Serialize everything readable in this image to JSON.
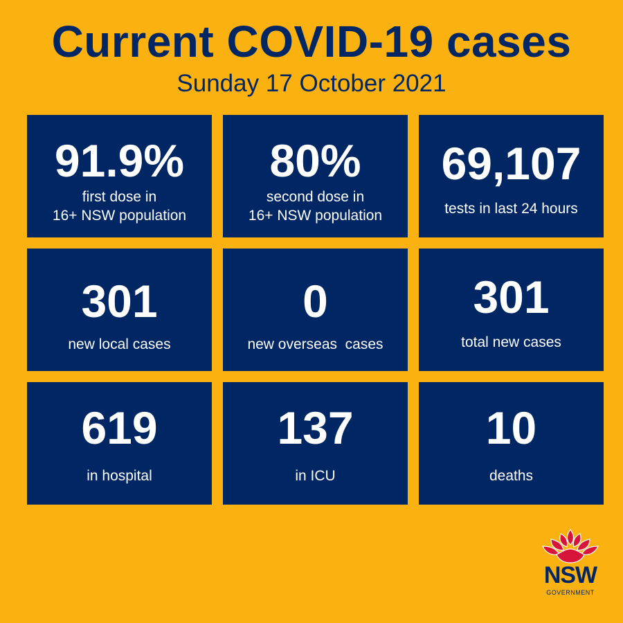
{
  "header": {
    "title": "Current COVID-19 cases",
    "date": "Sunday 17 October 2021"
  },
  "tiles": [
    {
      "value": "91.9%",
      "label_lines": [
        "first dose in",
        "16+ NSW population"
      ]
    },
    {
      "value": "80%",
      "label_lines": [
        "second dose in",
        "16+ NSW population"
      ]
    },
    {
      "value": "69,107",
      "label_lines": [
        "tests in last 24 hours"
      ]
    },
    {
      "value": "301",
      "label_lines": [
        "new local cases"
      ]
    },
    {
      "value": "0",
      "label_lines": [
        "new overseas  cases"
      ]
    },
    {
      "value": "301",
      "label_lines": [
        "total new cases"
      ]
    },
    {
      "value": "619",
      "label_lines": [
        "in hospital"
      ]
    },
    {
      "value": "137",
      "label_lines": [
        "in ICU"
      ]
    },
    {
      "value": "10",
      "label_lines": [
        "deaths"
      ]
    }
  ],
  "logo": {
    "icon": "waratah-flower-icon",
    "text": "NSW",
    "subtext": "GOVERNMENT"
  },
  "colors": {
    "background": "#FBB10F",
    "navy": "#002664",
    "logo_red": "#D7153A"
  }
}
